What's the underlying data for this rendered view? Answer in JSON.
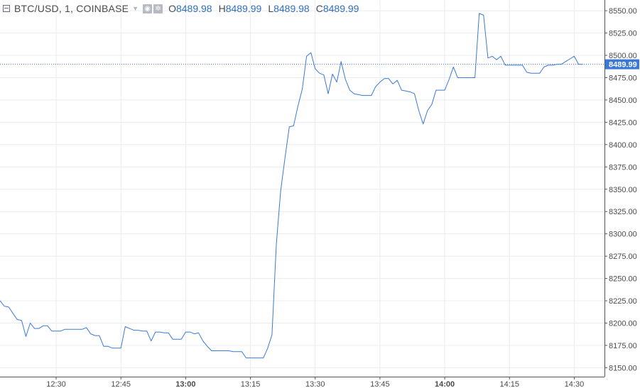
{
  "legend": {
    "symbol": "BTC/USD, 1, COINBASE",
    "ohlc": [
      {
        "key": "O",
        "value": "8489.98"
      },
      {
        "key": "H",
        "value": "8489.99"
      },
      {
        "key": "L",
        "value": "8489.98"
      },
      {
        "key": "C",
        "value": "8489.99"
      }
    ],
    "icons": [
      "collapse-icon",
      "chevron-down-icon",
      "eye-icon",
      "gear-icon"
    ]
  },
  "colors": {
    "line": "#3a78d8",
    "grid": "#e8ecf0",
    "axis_text": "#4a4a4a",
    "price_tag_bg": "#3a78d8",
    "price_tag_text": "#ffffff"
  },
  "chart_data": {
    "type": "line",
    "title": "BTC/USD, 1, COINBASE",
    "xlabel": "",
    "ylabel": "",
    "ylim": [
      8140,
      8562
    ],
    "grid": true,
    "last_price_label": "8489.99",
    "last_price": 8489.99,
    "y_ticks": [
      8150,
      8175,
      8200,
      8225,
      8250,
      8275,
      8300,
      8325,
      8350,
      8375,
      8400,
      8425,
      8450,
      8475,
      8500,
      8525,
      8550
    ],
    "y_tick_labels": [
      "8150.00",
      "8175.00",
      "8200.00",
      "8225.00",
      "8250.00",
      "8275.00",
      "8300.00",
      "8325.00",
      "8350.00",
      "8375.00",
      "8400.00",
      "8425.00",
      "8450.00",
      "8475.00",
      "8500.00",
      "8525.00",
      "8550.00"
    ],
    "x_ticks": [
      {
        "label": "12:30",
        "t": "12:30",
        "bold": false
      },
      {
        "label": "12:45",
        "t": "12:45",
        "bold": false
      },
      {
        "label": "13:00",
        "t": "13:00",
        "bold": true
      },
      {
        "label": "13:15",
        "t": "13:15",
        "bold": false
      },
      {
        "label": "13:30",
        "t": "13:30",
        "bold": false
      },
      {
        "label": "13:45",
        "t": "13:45",
        "bold": false
      },
      {
        "label": "14:00",
        "t": "14:00",
        "bold": true
      },
      {
        "label": "14:15",
        "t": "14:15",
        "bold": false
      },
      {
        "label": "14:30",
        "t": "14:30",
        "bold": false
      }
    ],
    "xlim": [
      "12:17",
      "14:37"
    ],
    "series": [
      {
        "values": [
          [
            "12:17",
            8225
          ],
          [
            "12:18",
            8219
          ],
          [
            "12:19",
            8218
          ],
          [
            "12:20",
            8211
          ],
          [
            "12:21",
            8204
          ],
          [
            "12:22",
            8203
          ],
          [
            "12:23",
            8185
          ],
          [
            "12:24",
            8200
          ],
          [
            "12:25",
            8194
          ],
          [
            "12:26",
            8194
          ],
          [
            "12:27",
            8197
          ],
          [
            "12:28",
            8197
          ],
          [
            "12:29",
            8191
          ],
          [
            "12:30",
            8191
          ],
          [
            "12:31",
            8191
          ],
          [
            "12:32",
            8193
          ],
          [
            "12:33",
            8193
          ],
          [
            "12:34",
            8193
          ],
          [
            "12:35",
            8193
          ],
          [
            "12:36",
            8193
          ],
          [
            "12:37",
            8195
          ],
          [
            "12:38",
            8188
          ],
          [
            "12:39",
            8186
          ],
          [
            "12:40",
            8186
          ],
          [
            "12:41",
            8174
          ],
          [
            "12:42",
            8174
          ],
          [
            "12:43",
            8172
          ],
          [
            "12:44",
            8172
          ],
          [
            "12:45",
            8172
          ],
          [
            "12:46",
            8196
          ],
          [
            "12:47",
            8194
          ],
          [
            "12:48",
            8192
          ],
          [
            "12:49",
            8192
          ],
          [
            "12:50",
            8191
          ],
          [
            "12:51",
            8191
          ],
          [
            "12:52",
            8180
          ],
          [
            "12:53",
            8190
          ],
          [
            "12:54",
            8190
          ],
          [
            "12:55",
            8189
          ],
          [
            "12:56",
            8189
          ],
          [
            "12:57",
            8182
          ],
          [
            "12:58",
            8182
          ],
          [
            "12:59",
            8182
          ],
          [
            "13:00",
            8190
          ],
          [
            "13:01",
            8190
          ],
          [
            "13:02",
            8188
          ],
          [
            "13:03",
            8189
          ],
          [
            "13:04",
            8180
          ],
          [
            "13:05",
            8174
          ],
          [
            "13:06",
            8169
          ],
          [
            "13:07",
            8169
          ],
          [
            "13:08",
            8169
          ],
          [
            "13:09",
            8169
          ],
          [
            "13:10",
            8169
          ],
          [
            "13:11",
            8168
          ],
          [
            "13:12",
            8168
          ],
          [
            "13:13",
            8168
          ],
          [
            "13:14",
            8161
          ],
          [
            "13:15",
            8161
          ],
          [
            "13:16",
            8161
          ],
          [
            "13:17",
            8161
          ],
          [
            "13:18",
            8161
          ],
          [
            "13:19",
            8172
          ],
          [
            "13:20",
            8187
          ],
          [
            "13:21",
            8288
          ],
          [
            "13:22",
            8348
          ],
          [
            "13:23",
            8385
          ],
          [
            "13:24",
            8420
          ],
          [
            "13:25",
            8421
          ],
          [
            "13:26",
            8443
          ],
          [
            "13:27",
            8462
          ],
          [
            "13:28",
            8499
          ],
          [
            "13:29",
            8503
          ],
          [
            "13:30",
            8485
          ],
          [
            "13:31",
            8480
          ],
          [
            "13:32",
            8478
          ],
          [
            "13:33",
            8457
          ],
          [
            "13:34",
            8479
          ],
          [
            "13:35",
            8470
          ],
          [
            "13:36",
            8493
          ],
          [
            "13:37",
            8473
          ],
          [
            "13:38",
            8461
          ],
          [
            "13:39",
            8457
          ],
          [
            "13:40",
            8456
          ],
          [
            "13:41",
            8455
          ],
          [
            "13:42",
            8455
          ],
          [
            "13:43",
            8455
          ],
          [
            "13:44",
            8465
          ],
          [
            "13:45",
            8470
          ],
          [
            "13:46",
            8474
          ],
          [
            "13:47",
            8474
          ],
          [
            "13:48",
            8468
          ],
          [
            "13:49",
            8472
          ],
          [
            "13:50",
            8461
          ],
          [
            "13:51",
            8460
          ],
          [
            "13:52",
            8459
          ],
          [
            "13:53",
            8457
          ],
          [
            "13:54",
            8438
          ],
          [
            "13:55",
            8423
          ],
          [
            "13:56",
            8438
          ],
          [
            "13:57",
            8445
          ],
          [
            "13:58",
            8461
          ],
          [
            "13:59",
            8461
          ],
          [
            "14:00",
            8461
          ],
          [
            "14:01",
            8473
          ],
          [
            "14:02",
            8487
          ],
          [
            "14:03",
            8475
          ],
          [
            "14:04",
            8475
          ],
          [
            "14:05",
            8475
          ],
          [
            "14:06",
            8475
          ],
          [
            "14:07",
            8475
          ],
          [
            "14:08",
            8547
          ],
          [
            "14:09",
            8545
          ],
          [
            "14:10",
            8497
          ],
          [
            "14:11",
            8499
          ],
          [
            "14:12",
            8495
          ],
          [
            "14:13",
            8499
          ],
          [
            "14:14",
            8489
          ],
          [
            "14:15",
            8489
          ],
          [
            "14:16",
            8489
          ],
          [
            "14:17",
            8489
          ],
          [
            "14:18",
            8489
          ],
          [
            "14:19",
            8481
          ],
          [
            "14:20",
            8480
          ],
          [
            "14:21",
            8480
          ],
          [
            "14:22",
            8480
          ],
          [
            "14:23",
            8487
          ],
          [
            "14:24",
            8489
          ],
          [
            "14:25",
            8489
          ],
          [
            "14:26",
            8490
          ],
          [
            "14:27",
            8490
          ],
          [
            "14:28",
            8493
          ],
          [
            "14:29",
            8496
          ],
          [
            "14:30",
            8499
          ],
          [
            "14:31",
            8490
          ],
          [
            "14:32",
            8489.99
          ]
        ]
      }
    ]
  }
}
